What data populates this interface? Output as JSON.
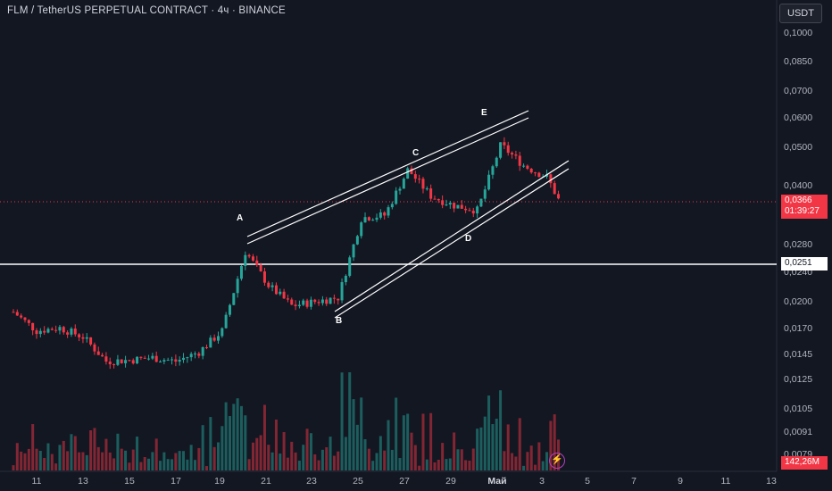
{
  "header": {
    "title": "FLM / TetherUS PERPETUAL CONTRACT · 4ч · BINANCE",
    "currency": "USDT"
  },
  "price_axis": {
    "labels": [
      "0,1000",
      "0,0850",
      "0,0700",
      "0,0600",
      "0,0500",
      "0,0400",
      "0,0280",
      "0,0240",
      "0,0200",
      "0,0170",
      "0,0145",
      "0,0125",
      "0,0105",
      "0,0091",
      "0,0079"
    ],
    "last_price": "0,0366",
    "countdown": "01:39:27",
    "line_price": "0,0251",
    "volume": "142,26M"
  },
  "time_axis": {
    "labels": [
      "11",
      "13",
      "15",
      "17",
      "19",
      "21",
      "23",
      "25",
      "27",
      "29",
      "Май",
      "3",
      "5",
      "7",
      "9",
      "11",
      "13"
    ]
  },
  "pattern_labels": [
    "A",
    "B",
    "C",
    "D",
    "E"
  ],
  "icons": {
    "alert": "lightning-icon"
  },
  "colors": {
    "background": "#131722",
    "up": "#26a69a",
    "down": "#f23645",
    "text": "#d1d4dc",
    "lines": "#ffffff"
  },
  "chart_data": {
    "type": "candlestick",
    "symbol": "FLM / TetherUS PERPETUAL CONTRACT",
    "interval": "4ч",
    "exchange": "BINANCE",
    "y_scale": "log",
    "ylim": [
      0.0075,
      0.115
    ],
    "last_price": 0.0366,
    "horizontal_line": 0.0251,
    "points": [
      {
        "t": "Apr 10",
        "p": 0.0188
      },
      {
        "t": "Apr 11",
        "p": 0.0168
      },
      {
        "t": "Apr 12",
        "p": 0.0171
      },
      {
        "t": "Apr 13",
        "p": 0.0162
      },
      {
        "t": "Apr 14",
        "p": 0.014
      },
      {
        "t": "Apr 15",
        "p": 0.0141
      },
      {
        "t": "Apr 16",
        "p": 0.0143
      },
      {
        "t": "Apr 17",
        "p": 0.014
      },
      {
        "t": "Apr 18",
        "p": 0.0148
      },
      {
        "t": "Apr 19",
        "p": 0.0168
      },
      {
        "t": "Apr 20",
        "p": 0.027
      },
      {
        "t": "Apr 21",
        "p": 0.022
      },
      {
        "t": "Apr 22",
        "p": 0.0195
      },
      {
        "t": "Apr 23",
        "p": 0.02
      },
      {
        "t": "Apr 24",
        "p": 0.0205
      },
      {
        "t": "Apr 25",
        "p": 0.033
      },
      {
        "t": "Apr 26",
        "p": 0.0335
      },
      {
        "t": "Apr 27",
        "p": 0.044
      },
      {
        "t": "Apr 28",
        "p": 0.0375
      },
      {
        "t": "Apr 29",
        "p": 0.0355
      },
      {
        "t": "Apr 30",
        "p": 0.0345
      },
      {
        "t": "May 1",
        "p": 0.051
      },
      {
        "t": "May 2",
        "p": 0.045
      },
      {
        "t": "May 3",
        "p": 0.042
      },
      {
        "t": "May 3.5",
        "p": 0.0366
      }
    ],
    "pattern_points": [
      {
        "label": "A",
        "t": "Apr 20",
        "price": 0.0275
      },
      {
        "label": "B",
        "t": "Apr 24",
        "price": 0.019
      },
      {
        "label": "C",
        "t": "Apr 27",
        "price": 0.045
      },
      {
        "label": "D",
        "t": "Apr 30",
        "price": 0.0305
      },
      {
        "label": "E",
        "t": "May 2",
        "price": 0.053
      }
    ],
    "volume_last": "142,26M"
  }
}
